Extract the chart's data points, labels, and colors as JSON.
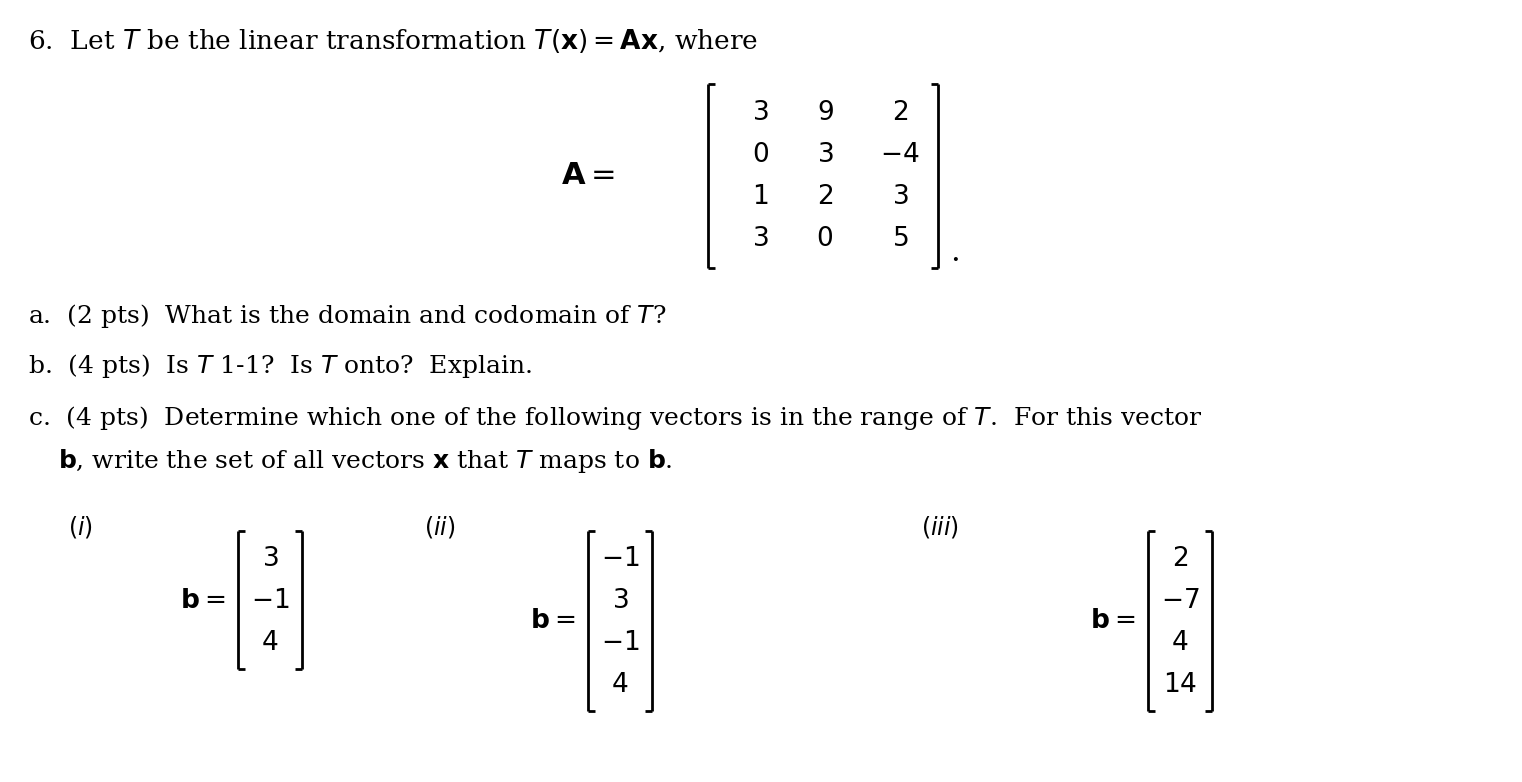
{
  "bg_color": "#ffffff",
  "text_color": "#000000",
  "matrix_A": [
    [
      "3",
      "9",
      "2"
    ],
    [
      "0",
      "3",
      "-4"
    ],
    [
      "1",
      "2",
      "3"
    ],
    [
      "3",
      "0",
      "5"
    ]
  ],
  "vec_i": [
    "3",
    "-1",
    "4"
  ],
  "vec_ii": [
    "-1",
    "3",
    "-1",
    "4"
  ],
  "vec_iii": [
    "2",
    "-7",
    "4",
    "14"
  ],
  "title_fs": 19,
  "body_fs": 18,
  "mat_fs": 19,
  "vec_fs": 19,
  "label_fs": 17
}
